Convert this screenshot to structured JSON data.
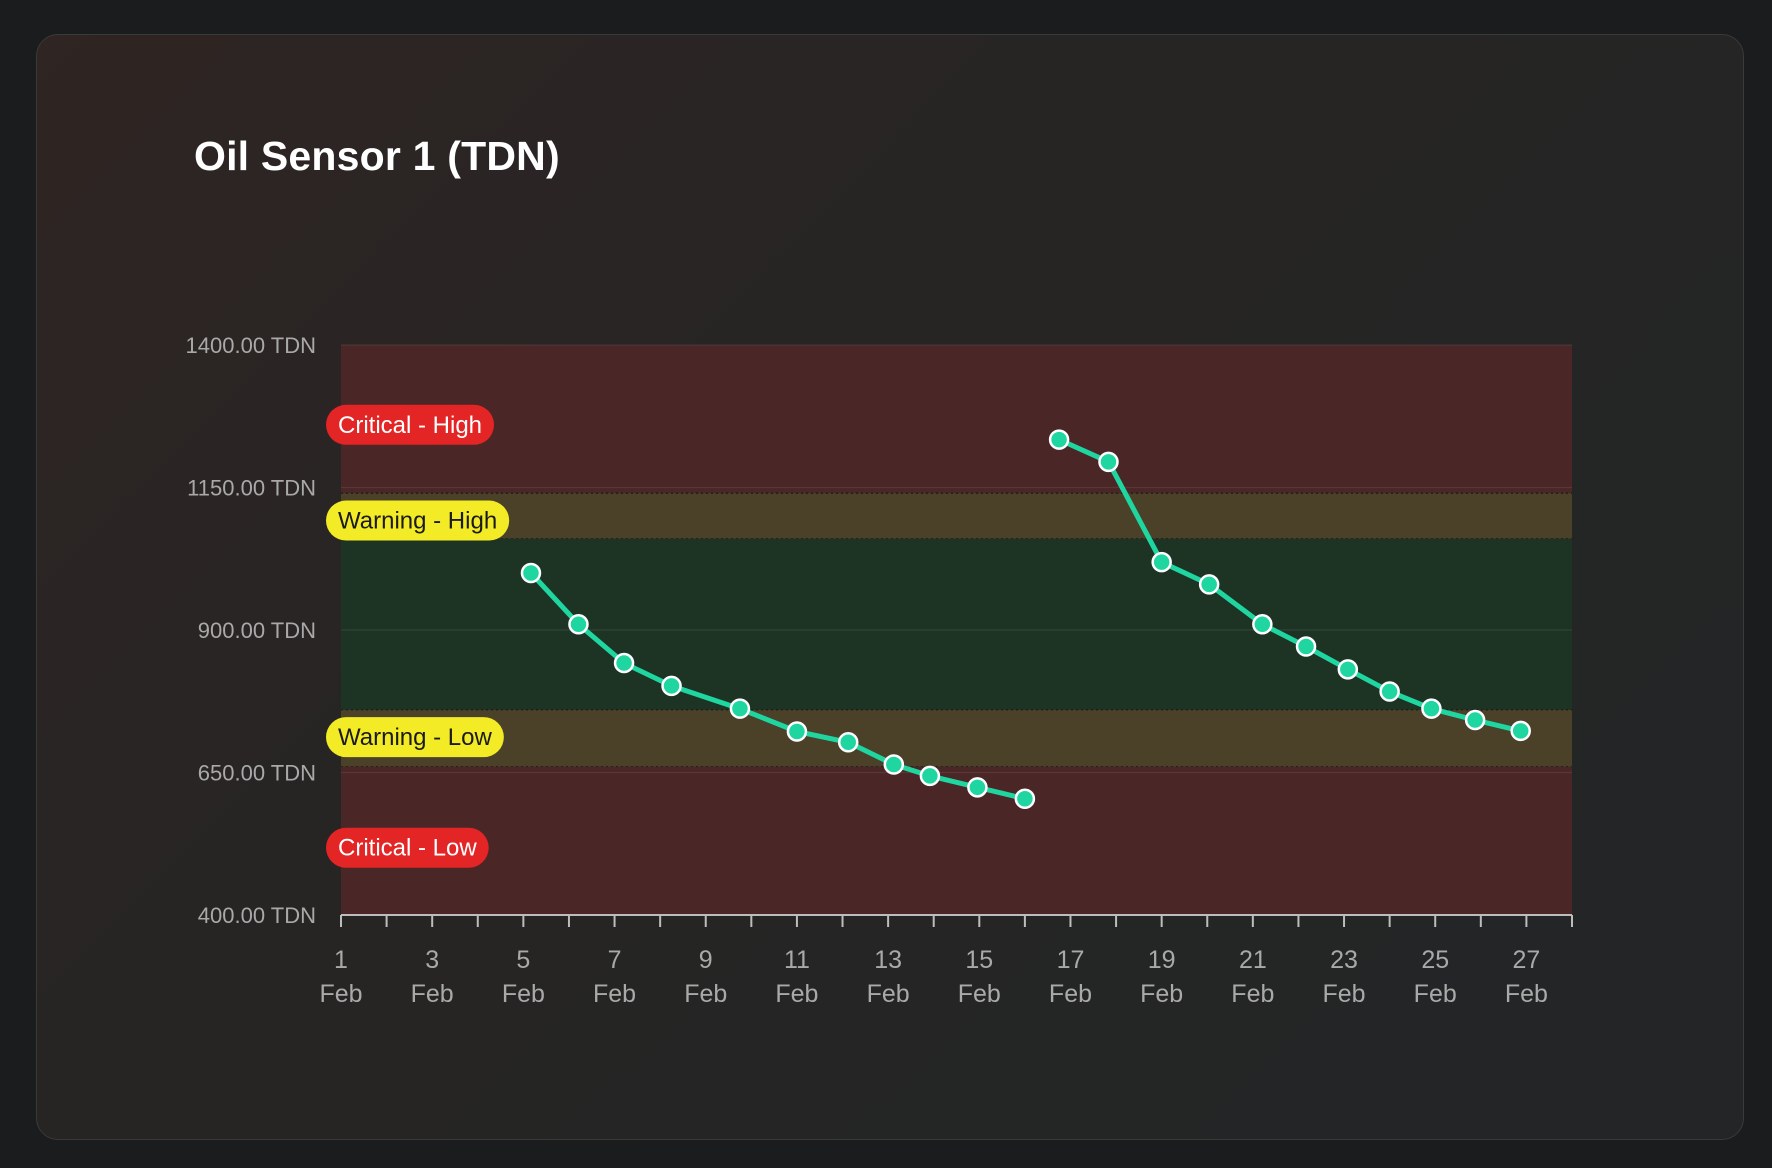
{
  "card": {
    "title": "Oil Sensor 1 (TDN)"
  },
  "chart_data": {
    "type": "line",
    "title": "Oil Sensor 1 (TDN)",
    "unit": "TDN",
    "ylim": [
      400,
      1400
    ],
    "y_ticks": [
      {
        "value": 1400,
        "label": "1400.00 TDN"
      },
      {
        "value": 1150,
        "label": "1150.00 TDN"
      },
      {
        "value": 900,
        "label": "900.00 TDN"
      },
      {
        "value": 650,
        "label": "650.00 TDN"
      },
      {
        "value": 400,
        "label": "400.00 TDN"
      }
    ],
    "xlim": [
      "2025-02-01",
      "2025-02-28"
    ],
    "x_ticks": [
      {
        "date": "2025-02-01",
        "day": "1",
        "month": "Feb"
      },
      {
        "date": "2025-02-03",
        "day": "3",
        "month": "Feb"
      },
      {
        "date": "2025-02-05",
        "day": "5",
        "month": "Feb"
      },
      {
        "date": "2025-02-07",
        "day": "7",
        "month": "Feb"
      },
      {
        "date": "2025-02-09",
        "day": "9",
        "month": "Feb"
      },
      {
        "date": "2025-02-11",
        "day": "11",
        "month": "Feb"
      },
      {
        "date": "2025-02-13",
        "day": "13",
        "month": "Feb"
      },
      {
        "date": "2025-02-15",
        "day": "15",
        "month": "Feb"
      },
      {
        "date": "2025-02-17",
        "day": "17",
        "month": "Feb"
      },
      {
        "date": "2025-02-19",
        "day": "19",
        "month": "Feb"
      },
      {
        "date": "2025-02-21",
        "day": "21",
        "month": "Feb"
      },
      {
        "date": "2025-02-23",
        "day": "23",
        "month": "Feb"
      },
      {
        "date": "2025-02-25",
        "day": "25",
        "month": "Feb"
      },
      {
        "date": "2025-02-27",
        "day": "27",
        "month": "Feb"
      }
    ],
    "zones": [
      {
        "name": "Critical - High",
        "from": 1140,
        "to": 1400,
        "color": "#4a2626",
        "label_value": 1260,
        "badge_bg": "#e32525",
        "badge_text_color": "#ffffff"
      },
      {
        "name": "Warning - High",
        "from": 1060,
        "to": 1140,
        "color": "#4a4128",
        "label_value": 1092,
        "badge_bg": "#f2eb25",
        "badge_text_color": "#1a1a1a"
      },
      {
        "name": "Normal",
        "from": 760,
        "to": 1060,
        "color": "#1d3324",
        "label_value": null,
        "badge_bg": null,
        "badge_text_color": null
      },
      {
        "name": "Warning - Low",
        "from": 660,
        "to": 760,
        "color": "#4a4128",
        "label_value": 712,
        "badge_bg": "#f2eb25",
        "badge_text_color": "#1a1a1a"
      },
      {
        "name": "Critical - Low",
        "from": 400,
        "to": 660,
        "color": "#4a2626",
        "label_value": 518,
        "badge_bg": "#e32525",
        "badge_text_color": "#ffffff"
      }
    ],
    "grid": true,
    "legend": false,
    "series": [
      {
        "color": "#1fd6a0",
        "segments": [
          [
            {
              "x": "2025-02-05 04:00",
              "y": 1000
            },
            {
              "x": "2025-02-06 05:00",
              "y": 910
            },
            {
              "x": "2025-02-07 05:00",
              "y": 842
            },
            {
              "x": "2025-02-08 06:00",
              "y": 802
            },
            {
              "x": "2025-02-09 18:00",
              "y": 762
            },
            {
              "x": "2025-02-11 00:00",
              "y": 722
            },
            {
              "x": "2025-02-12 03:00",
              "y": 703
            },
            {
              "x": "2025-02-13 03:00",
              "y": 664
            },
            {
              "x": "2025-02-13 22:00",
              "y": 644
            },
            {
              "x": "2025-02-14 23:00",
              "y": 624
            },
            {
              "x": "2025-02-16 00:00",
              "y": 604
            }
          ],
          [
            {
              "x": "2025-02-16 18:00",
              "y": 1234
            },
            {
              "x": "2025-02-17 20:00",
              "y": 1195
            },
            {
              "x": "2025-02-19 00:00",
              "y": 1019
            },
            {
              "x": "2025-02-20 01:00",
              "y": 980
            },
            {
              "x": "2025-02-21 05:00",
              "y": 910
            },
            {
              "x": "2025-02-22 04:00",
              "y": 871
            },
            {
              "x": "2025-02-23 02:00",
              "y": 831
            },
            {
              "x": "2025-02-24 00:00",
              "y": 792
            },
            {
              "x": "2025-02-24 22:00",
              "y": 762
            },
            {
              "x": "2025-02-25 21:00",
              "y": 742
            },
            {
              "x": "2025-02-26 21:00",
              "y": 723
            }
          ]
        ]
      }
    ]
  }
}
